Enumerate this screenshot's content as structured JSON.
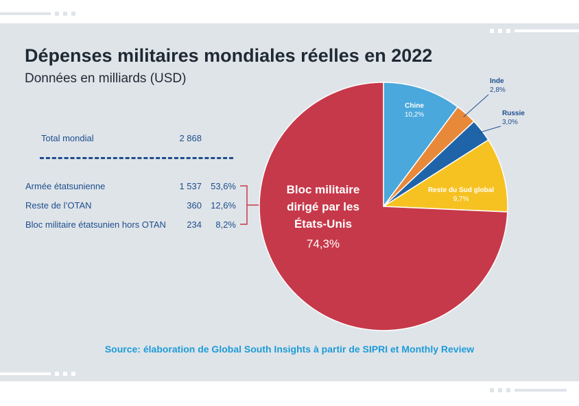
{
  "title": "Dépenses militaires mondiales réelles en 2022",
  "subtitle": "Données en milliards (USD)",
  "total": {
    "label": "Total mondial",
    "value": "2 868"
  },
  "breakdown": [
    {
      "label": "Armée étatsunienne",
      "value": "1 537",
      "share": "53,6%"
    },
    {
      "label": "Reste de l’OTAN",
      "value": "360",
      "share": "12,6%"
    },
    {
      "label": "Bloc militaire étatsunien hors OTAN",
      "value": "234",
      "share": "8,2%"
    }
  ],
  "source": "Source: élaboration de Global South Insights à partir de SIPRI et Monthly Review",
  "chart_data": {
    "type": "pie",
    "title": "Dépenses militaires mondiales réelles en 2022",
    "subtitle": "Données en milliards (USD)",
    "slices": [
      {
        "label": "Chine",
        "pct_label": "10,2%",
        "value": 10.2,
        "color": "#4aa8dc"
      },
      {
        "label": "Inde",
        "pct_label": "2,8%",
        "value": 2.8,
        "color": "#e8893a"
      },
      {
        "label": "Russie",
        "pct_label": "3,0%",
        "value": 3.0,
        "color": "#1f64a8"
      },
      {
        "label": "Reste du Sud global",
        "pct_label": "9,7%",
        "value": 9.7,
        "color": "#f6c222"
      },
      {
        "label": "Bloc militaire dirigé par les États-Unis",
        "pct_label": "74,3%",
        "value": 74.3,
        "color": "#c6394a"
      }
    ],
    "center_label_lines": [
      "Bloc militaire",
      "dirigé par les",
      "États-Unis"
    ]
  }
}
